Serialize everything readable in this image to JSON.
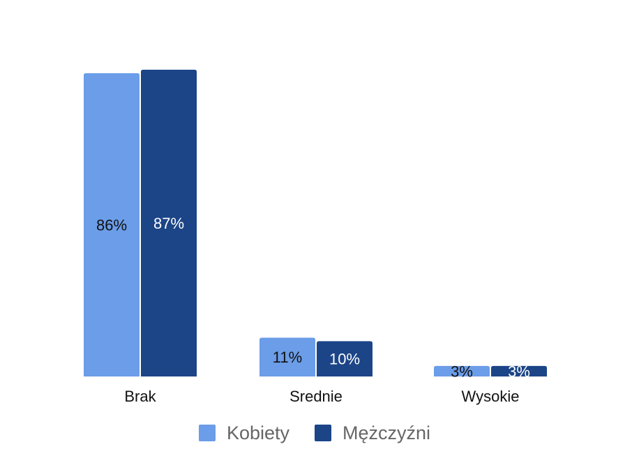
{
  "chart_data": {
    "type": "bar",
    "categories": [
      "Brak",
      "Srednie",
      "Wysokie"
    ],
    "series": [
      {
        "name": "Kobiety",
        "values": [
          86,
          11,
          3
        ],
        "labels": [
          "86%",
          "11%",
          "3%"
        ],
        "color": "#6b9de8",
        "label_color": "#111111"
      },
      {
        "name": "Mężczyźni",
        "values": [
          87,
          10,
          3
        ],
        "labels": [
          "87%",
          "10%",
          "3%"
        ],
        "color": "#1c4587",
        "label_color": "#ffffff"
      }
    ],
    "ylim": [
      0,
      87
    ],
    "legend_position": "bottom-center",
    "grid": false
  }
}
